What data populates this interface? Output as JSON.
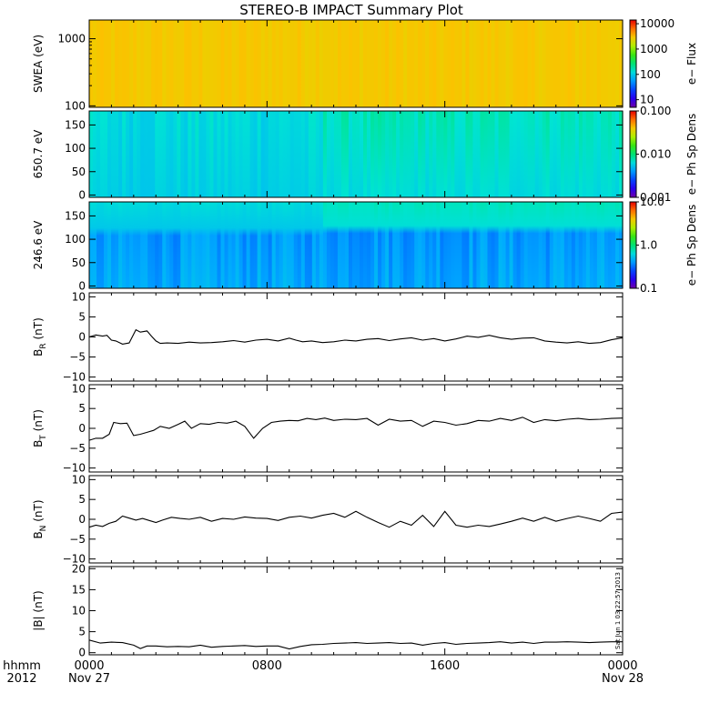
{
  "chart_data": {
    "title": "STEREO-B IMPACT Summary Plot",
    "timestamp_note": "Sat Jun 1 03:22:57 2013",
    "x_axis": {
      "row1_labels": [
        "hhmm",
        "0000",
        "0800",
        "1600",
        "0000"
      ],
      "row2_labels": [
        "2012",
        "Nov 27",
        "",
        "",
        "Nov 28"
      ],
      "tick_hours": [
        0,
        8,
        16,
        24
      ],
      "range_hours": [
        0,
        24
      ]
    },
    "panels": [
      {
        "id": "swea",
        "type": "heatmap",
        "ylabel": "SWEA (eV)",
        "yscale": "log",
        "ylim": [
          95,
          1900
        ],
        "yticks": [
          100,
          1000
        ],
        "ytick_labels": [
          "100",
          "1000"
        ],
        "colorbar": {
          "label": "e− Flux",
          "scale": "log",
          "range": [
            5,
            14000
          ],
          "ticks": [
            10,
            100,
            1000,
            10000
          ],
          "tick_labels": [
            "10",
            "100",
            "1000",
            "10000"
          ]
        },
        "profile": [
          {
            "y": 95,
            "v": 0.8
          },
          {
            "y": 150,
            "v": 0.72
          },
          {
            "y": 250,
            "v": 0.58
          },
          {
            "y": 400,
            "v": 0.45
          },
          {
            "y": 650,
            "v": 0.37
          },
          {
            "y": 1000,
            "v": 0.24
          },
          {
            "y": 1400,
            "v": 0.13
          },
          {
            "y": 1900,
            "v": 0.06
          }
        ]
      },
      {
        "id": "pad650",
        "type": "heatmap",
        "ylabel": "650.7 eV",
        "yscale": "linear",
        "ylim": [
          -5,
          180
        ],
        "yticks": [
          0,
          50,
          100,
          150
        ],
        "ytick_labels": [
          "0",
          "50",
          "100",
          "150"
        ],
        "colorbar": {
          "label": "e− Ph Sp Dens",
          "scale": "log",
          "range": [
            0.001,
            0.1
          ],
          "ticks": [
            0.001,
            0.01,
            0.1
          ],
          "tick_labels": [
            "0.001",
            "0.010",
            "0.100"
          ]
        },
        "left_value": 0.38,
        "right_low": 0.4,
        "right_high": 0.44,
        "change_hour": 10.5
      },
      {
        "id": "pad246",
        "type": "heatmap",
        "ylabel": "246.6 eV",
        "yscale": "linear",
        "ylim": [
          -5,
          180
        ],
        "yticks": [
          0,
          50,
          100,
          150
        ],
        "ytick_labels": [
          "0",
          "50",
          "100",
          "150"
        ],
        "colorbar": {
          "label": "e− Ph Sp Dens",
          "scale": "log",
          "range": [
            0.1,
            10
          ],
          "ticks": [
            0.1,
            1,
            10
          ],
          "tick_labels": [
            "0.1",
            "1.0",
            "10.0"
          ]
        },
        "low_value": 0.3,
        "high_value_left": 0.4,
        "high_value_right": 0.44,
        "boundary_left": 115,
        "boundary_right": 120,
        "change_hour": 10.5
      },
      {
        "id": "br",
        "type": "line",
        "ylabel": "B",
        "ylabel_sub": "R",
        "ylabel_suffix": " (nT)",
        "ylim": [
          -11,
          11
        ],
        "yticks": [
          -10,
          -5,
          0,
          5,
          10
        ],
        "ytick_labels": [
          "−10",
          "−5",
          "0",
          "5",
          "10"
        ],
        "x": [
          0,
          0.3,
          0.6,
          0.8,
          1.0,
          1.2,
          1.5,
          1.8,
          2.1,
          2.3,
          2.6,
          2.8,
          3.0,
          3.2,
          3.5,
          4.0,
          4.5,
          5.0,
          5.5,
          6.0,
          6.5,
          7.0,
          7.5,
          8.0,
          8.5,
          9.0,
          9.3,
          9.6,
          10.0,
          10.5,
          11.0,
          11.5,
          12.0,
          12.5,
          13.0,
          13.5,
          14.0,
          14.5,
          15.0,
          15.5,
          16.0,
          16.5,
          17.0,
          17.5,
          18.0,
          18.5,
          19.0,
          19.5,
          20.0,
          20.5,
          21.0,
          21.5,
          22.0,
          22.5,
          23.0,
          23.5,
          24.0
        ],
        "values": [
          0.0,
          0.5,
          0.2,
          0.4,
          -0.8,
          -1.0,
          -1.8,
          -1.5,
          1.8,
          1.2,
          1.5,
          0.2,
          -1.0,
          -1.6,
          -1.5,
          -1.6,
          -1.3,
          -1.5,
          -1.4,
          -1.2,
          -0.9,
          -1.3,
          -0.8,
          -0.6,
          -1.0,
          -0.3,
          -0.8,
          -1.2,
          -1.0,
          -1.4,
          -1.2,
          -0.8,
          -1.0,
          -0.6,
          -0.4,
          -0.9,
          -0.5,
          -0.2,
          -0.8,
          -0.4,
          -1.0,
          -0.5,
          0.2,
          -0.1,
          0.4,
          -0.2,
          -0.6,
          -0.3,
          -0.2,
          -1.0,
          -1.3,
          -1.5,
          -1.2,
          -1.6,
          -1.4,
          -0.7,
          -0.2
        ]
      },
      {
        "id": "bt",
        "type": "line",
        "ylabel": "B",
        "ylabel_sub": "T",
        "ylabel_suffix": " (nT)",
        "ylim": [
          -11,
          11
        ],
        "yticks": [
          -10,
          -5,
          0,
          5,
          10
        ],
        "ytick_labels": [
          "−10",
          "−5",
          "0",
          "5",
          "10"
        ],
        "x": [
          0,
          0.3,
          0.6,
          0.9,
          1.1,
          1.4,
          1.7,
          2.0,
          2.3,
          2.6,
          2.9,
          3.2,
          3.6,
          4.0,
          4.3,
          4.6,
          5.0,
          5.4,
          5.8,
          6.2,
          6.6,
          7.0,
          7.4,
          7.8,
          8.2,
          8.6,
          9.0,
          9.4,
          9.8,
          10.2,
          10.6,
          11.0,
          11.5,
          12.0,
          12.5,
          13.0,
          13.5,
          14.0,
          14.5,
          15.0,
          15.5,
          16.0,
          16.5,
          17.0,
          17.5,
          18.0,
          18.5,
          19.0,
          19.5,
          20.0,
          20.5,
          21.0,
          21.5,
          22.0,
          22.5,
          23.0,
          23.5,
          24.0
        ],
        "values": [
          -3.0,
          -2.5,
          -2.5,
          -1.5,
          1.5,
          1.2,
          1.3,
          -1.8,
          -1.5,
          -1.0,
          -0.5,
          0.5,
          0.0,
          1.0,
          1.8,
          0.0,
          1.2,
          1.0,
          1.5,
          1.3,
          1.8,
          0.5,
          -2.5,
          0.0,
          1.5,
          1.8,
          2.0,
          1.9,
          2.5,
          2.2,
          2.6,
          2.0,
          2.3,
          2.2,
          2.5,
          0.8,
          2.3,
          1.8,
          2.0,
          0.5,
          1.8,
          1.5,
          0.8,
          1.2,
          2.0,
          1.8,
          2.5,
          2.0,
          2.8,
          1.5,
          2.2,
          1.9,
          2.3,
          2.5,
          2.2,
          2.3,
          2.5,
          2.6
        ]
      },
      {
        "id": "bn",
        "type": "line",
        "ylabel": "B",
        "ylabel_sub": "N",
        "ylabel_suffix": " (nT)",
        "ylim": [
          -11,
          11
        ],
        "yticks": [
          -10,
          -5,
          0,
          5,
          10
        ],
        "ytick_labels": [
          "−10",
          "−5",
          "0",
          "5",
          "10"
        ],
        "x": [
          0,
          0.3,
          0.6,
          0.9,
          1.2,
          1.5,
          1.8,
          2.1,
          2.4,
          2.7,
          3.0,
          3.3,
          3.7,
          4.1,
          4.5,
          5.0,
          5.5,
          6.0,
          6.5,
          7.0,
          7.5,
          8.0,
          8.5,
          9.0,
          9.5,
          10.0,
          10.5,
          11.0,
          11.5,
          12.0,
          12.5,
          13.0,
          13.5,
          14.0,
          14.5,
          15.0,
          15.5,
          16.0,
          16.5,
          17.0,
          17.5,
          18.0,
          18.5,
          19.0,
          19.5,
          20.0,
          20.5,
          21.0,
          21.5,
          22.0,
          22.5,
          23.0,
          23.5,
          24.0
        ],
        "values": [
          -2.0,
          -1.5,
          -1.8,
          -1.0,
          -0.5,
          0.8,
          0.3,
          -0.2,
          0.2,
          -0.3,
          -0.8,
          -0.2,
          0.5,
          0.2,
          0.0,
          0.5,
          -0.5,
          0.2,
          0.0,
          0.6,
          0.3,
          0.2,
          -0.3,
          0.5,
          0.8,
          0.3,
          1.0,
          1.5,
          0.5,
          2.0,
          0.5,
          -0.8,
          -2.0,
          -0.5,
          -1.5,
          1.0,
          -1.8,
          2.0,
          -1.5,
          -2.0,
          -1.5,
          -1.8,
          -1.2,
          -0.5,
          0.3,
          -0.5,
          0.5,
          -0.5,
          0.2,
          0.8,
          0.2,
          -0.5,
          1.5,
          1.8
        ]
      },
      {
        "id": "bmag",
        "type": "line",
        "ylabel": "|B| (nT)",
        "ylim": [
          -0.5,
          20.5
        ],
        "yticks": [
          0,
          5,
          10,
          15,
          20
        ],
        "ytick_labels": [
          "0",
          "5",
          "10",
          "15",
          "20"
        ],
        "x": [
          0,
          0.5,
          1.0,
          1.5,
          2.0,
          2.3,
          2.6,
          3.0,
          3.5,
          4.0,
          4.5,
          5.0,
          5.5,
          6.0,
          6.5,
          7.0,
          7.5,
          8.0,
          8.5,
          9.0,
          9.5,
          10.0,
          10.5,
          11.0,
          11.5,
          12.0,
          12.5,
          13.0,
          13.5,
          14.0,
          14.5,
          15.0,
          15.5,
          16.0,
          16.5,
          17.0,
          17.5,
          18.0,
          18.5,
          19.0,
          19.5,
          20.0,
          20.5,
          21.0,
          21.5,
          22.0,
          22.5,
          23.0,
          23.5,
          24.0
        ],
        "values": [
          3.0,
          2.3,
          2.5,
          2.4,
          1.8,
          1.0,
          1.6,
          1.6,
          1.4,
          1.5,
          1.4,
          1.8,
          1.3,
          1.5,
          1.6,
          1.7,
          1.5,
          1.6,
          1.6,
          0.9,
          1.5,
          1.9,
          2.0,
          2.2,
          2.3,
          2.4,
          2.2,
          2.3,
          2.4,
          2.2,
          2.3,
          1.8,
          2.2,
          2.4,
          2.0,
          2.2,
          2.3,
          2.4,
          2.6,
          2.3,
          2.5,
          2.2,
          2.5,
          2.5,
          2.6,
          2.5,
          2.4,
          2.5,
          2.6,
          2.6
        ]
      }
    ]
  }
}
